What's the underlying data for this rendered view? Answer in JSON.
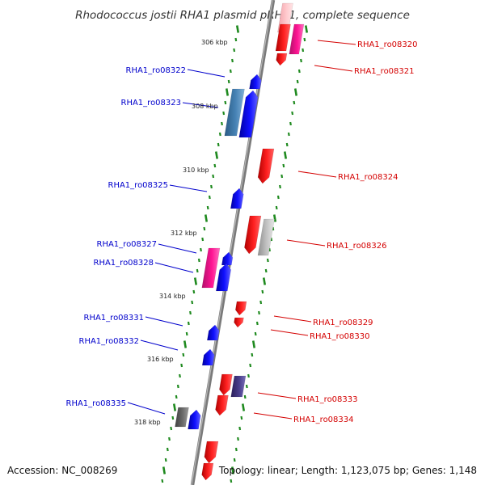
{
  "title": "Rhodococcus jostii RHA1 plasmid pRHL1, complete sequence",
  "footer": {
    "accession": "Accession: NC_008269",
    "summary": "Topology: linear; Length: 1,123,075 bp; Genes: 1,148"
  },
  "scale_labels": [
    "306 kbp",
    "308 kbp",
    "310 kbp",
    "312 kbp",
    "314 kbp",
    "316 kbp",
    "318 kbp"
  ],
  "genes_right": [
    "RHA1_ro08320",
    "RHA1_ro08321",
    "RHA1_ro08324",
    "RHA1_ro08326",
    "RHA1_ro08329",
    "RHA1_ro08330",
    "RHA1_ro08333",
    "RHA1_ro08334"
  ],
  "genes_left": [
    "RHA1_ro08322",
    "RHA1_ro08323",
    "RHA1_ro08325",
    "RHA1_ro08327",
    "RHA1_ro08328",
    "RHA1_ro08331",
    "RHA1_ro08332",
    "RHA1_ro08335"
  ],
  "colors": {
    "forward_gene": "#ff0000",
    "reverse_gene": "#0000ff",
    "pink_gene": "#ff1493",
    "grey_gene": "#bbbbbb",
    "steel_gene": "#4682b4",
    "backbone": "#808080",
    "ticks": "#228b22"
  }
}
